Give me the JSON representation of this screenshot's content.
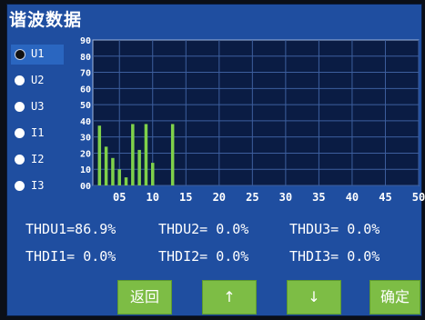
{
  "title": "谐波数据",
  "channels": [
    {
      "label": "U1",
      "selected": true
    },
    {
      "label": "U2",
      "selected": false
    },
    {
      "label": "U3",
      "selected": false
    },
    {
      "label": "I1",
      "selected": false
    },
    {
      "label": "I2",
      "selected": false
    },
    {
      "label": "I3",
      "selected": false
    }
  ],
  "stats": {
    "thdu1": "THDU1=86.9%",
    "thdu2": "THDU2= 0.0%",
    "thdu3": "THDU3= 0.0%",
    "thdi1": "THDI1= 0.0%",
    "thdi2": "THDI2= 0.0%",
    "thdi3": "THDI3= 0.0%"
  },
  "buttons": {
    "back": "返回",
    "up": "↑",
    "down": "↓",
    "confirm": "确定"
  },
  "colors": {
    "background": "#1f4ea0",
    "plot_background": "#0a1c44",
    "grid": "#3d5f9e",
    "bar": "#7fd14a",
    "button": "#7dbd45",
    "text": "#ffffff"
  },
  "chart_data": {
    "type": "bar",
    "x_ticks": [
      "05",
      "10",
      "15",
      "20",
      "25",
      "30",
      "35",
      "40",
      "45",
      "50"
    ],
    "y_ticks": [
      "00",
      "10",
      "20",
      "30",
      "40",
      "50",
      "60",
      "70",
      "80",
      "90"
    ],
    "ylim": [
      0,
      90
    ],
    "xlim": [
      1,
      50
    ],
    "grid": true,
    "harmonic_orders": [
      2,
      3,
      4,
      5,
      6,
      7,
      8,
      9,
      10,
      11,
      12,
      13
    ],
    "values": [
      37,
      24,
      17,
      10,
      5,
      38,
      22,
      38,
      14,
      0,
      0,
      38
    ]
  }
}
